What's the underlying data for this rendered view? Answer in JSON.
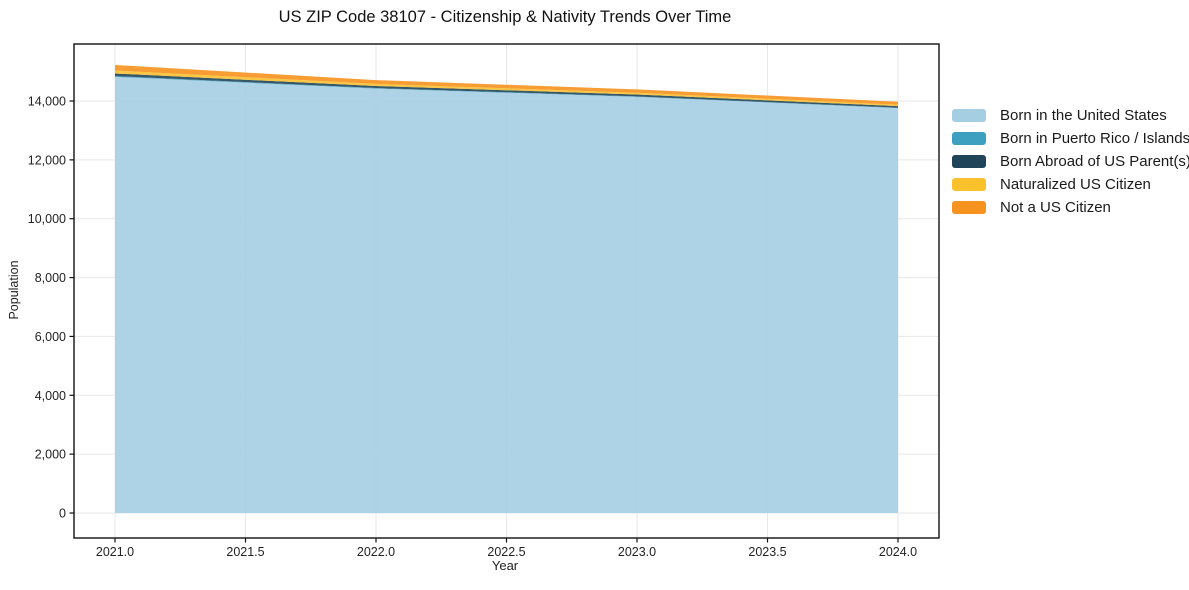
{
  "page": {
    "title": "US ZIP Code 38107 - Citizenship & Nativity Trends Over Time"
  },
  "chart_data": {
    "type": "area",
    "stacked": true,
    "title": "US ZIP Code 38107 - Citizenship & Nativity Trends Over Time",
    "xlabel": "Year",
    "ylabel": "Population",
    "x": [
      2021,
      2022,
      2023,
      2024
    ],
    "series": [
      {
        "name": "Born in the United States",
        "color": "#A6CEE3",
        "values": [
          14820,
          14420,
          14140,
          13760
        ]
      },
      {
        "name": "Born in Puerto Rico / Islands",
        "color": "#3DA0C1",
        "values": [
          25,
          20,
          15,
          10
        ]
      },
      {
        "name": "Born Abroad of US Parent(s)",
        "color": "#20455A",
        "values": [
          90,
          70,
          65,
          55
        ]
      },
      {
        "name": "Naturalized US Citizen",
        "color": "#FBC12D",
        "values": [
          100,
          70,
          60,
          50
        ]
      },
      {
        "name": "Not a US Citizen",
        "color": "#F6921E",
        "values": [
          190,
          130,
          115,
          100
        ]
      }
    ],
    "totals": [
      15225,
      14710,
      14395,
      13975
    ],
    "xticks": [
      2021.0,
      2021.5,
      2022.0,
      2022.5,
      2023.0,
      2023.5,
      2024.0
    ],
    "xtick_labels": [
      "2021.0",
      "2021.5",
      "2022.0",
      "2022.5",
      "2023.0",
      "2023.5",
      "2024.0"
    ],
    "yticks": [
      0,
      2000,
      4000,
      6000,
      8000,
      10000,
      12000,
      14000
    ],
    "ytick_labels": [
      "0",
      "2,000",
      "4,000",
      "6,000",
      "8,000",
      "10,000",
      "12,000",
      "14,000"
    ],
    "xlim": [
      2020.84,
      2024.16
    ],
    "ylim": [
      -850,
      15940
    ],
    "grid": true,
    "legend_position": "right-outside",
    "colors": {
      "background": "#ffffff",
      "frame": "#111111",
      "grid": "#e7e7e7",
      "text": "#222222"
    }
  }
}
